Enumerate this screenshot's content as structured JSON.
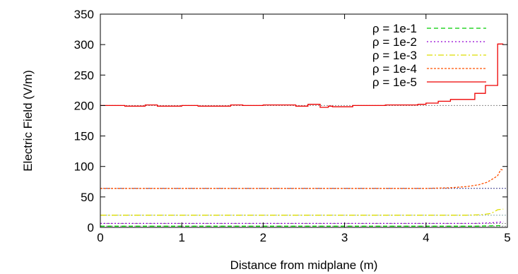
{
  "chart_data": {
    "type": "line",
    "xlabel": "Distance from midplane (m)",
    "ylabel": "Electric Field (V/m)",
    "xlim": [
      0,
      5
    ],
    "ylim": [
      0,
      350
    ],
    "xticks": [
      "0",
      "1",
      "2",
      "3",
      "4",
      "5"
    ],
    "yticks": [
      "0",
      "50",
      "100",
      "150",
      "200",
      "250",
      "300",
      "350"
    ],
    "grid": false,
    "legend_position": "top-right",
    "series": [
      {
        "name": "ρ = 1e-1",
        "color": "#00cc00",
        "dash": "6,4",
        "x": [
          0,
          4.6,
          4.8,
          4.95
        ],
        "y": [
          2,
          2,
          2.5,
          3
        ]
      },
      {
        "name": "ρ = 1e-2",
        "color": "#9400d3",
        "dash": "2,3",
        "x": [
          0,
          4.6,
          4.8,
          4.95
        ],
        "y": [
          6.5,
          6.5,
          7.5,
          9
        ]
      },
      {
        "name": "ρ = 1e-3",
        "color": "#dddd00",
        "dash": "8,3,2,3",
        "x": [
          0,
          4.5,
          4.7,
          4.8,
          4.88,
          4.95
        ],
        "y": [
          20,
          20,
          21,
          23,
          29,
          30
        ]
      },
      {
        "name": "ρ = 1e-4",
        "color": "#ff5000",
        "dash": "3,2",
        "x": [
          0,
          4.0,
          4.3,
          4.5,
          4.65,
          4.75,
          4.8,
          4.85,
          4.88,
          4.9,
          4.92,
          4.95
        ],
        "y": [
          64,
          64,
          65,
          67,
          70,
          74,
          78,
          82,
          85,
          90,
          95,
          94
        ]
      },
      {
        "name": "ρ = 1e-5",
        "color": "#ee0000",
        "dash": "",
        "x": [
          0,
          0.3,
          0.3,
          0.55,
          0.55,
          0.7,
          0.7,
          1.0,
          1.0,
          1.2,
          1.2,
          1.6,
          1.6,
          1.75,
          1.75,
          2.0,
          2.0,
          2.4,
          2.4,
          2.55,
          2.55,
          2.7,
          2.7,
          2.8,
          2.8,
          2.85,
          2.85,
          3.1,
          3.1,
          3.5,
          3.5,
          3.9,
          3.9,
          4.0,
          4.0,
          4.15,
          4.15,
          4.3,
          4.3,
          4.6,
          4.6,
          4.73,
          4.73,
          4.88,
          4.88,
          4.95
        ],
        "y": [
          200,
          200,
          199,
          199,
          201,
          201,
          199,
          199,
          200,
          200,
          199,
          199,
          201,
          201,
          200,
          200,
          201,
          201,
          199,
          199,
          202,
          202,
          197,
          197,
          199,
          199,
          198,
          198,
          200,
          200,
          201,
          201,
          202,
          202,
          204,
          204,
          207,
          207,
          210,
          210,
          220,
          220,
          233,
          233,
          301,
          301
        ]
      }
    ],
    "reference_lines": [
      {
        "y": 200,
        "color": "#888888",
        "dash": "2,2"
      },
      {
        "y": 64,
        "color": "#333388",
        "dash": "2,2"
      },
      {
        "y": 20,
        "color": "#88aaaa",
        "dash": "2,2"
      },
      {
        "y": 6.5,
        "color": "#888888",
        "dash": "2,2"
      },
      {
        "y": 2,
        "color": "#888888",
        "dash": "2,2"
      }
    ]
  }
}
